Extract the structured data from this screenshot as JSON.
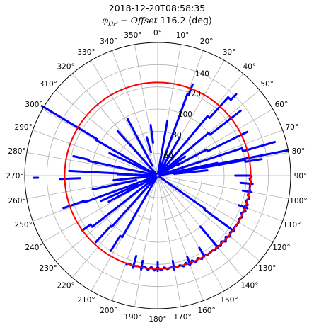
{
  "chart_data": {
    "type": "polar-line",
    "title": "2018-12-20T08:58:35",
    "subtitle_prefix": "φ",
    "subtitle_sub": "DP",
    "subtitle_rest": " − Offset",
    "subtitle_value": "116.2 (deg)",
    "theta_ticks": [
      "0°",
      "10°",
      "20°",
      "30°",
      "40°",
      "50°",
      "60°",
      "70°",
      "80°",
      "90°",
      "100°",
      "110°",
      "120°",
      "130°",
      "140°",
      "150°",
      "160°",
      "170°",
      "180°",
      "190°",
      "200°",
      "210°",
      "220°",
      "230°",
      "240°",
      "250°",
      "260°",
      "270°",
      "280°",
      "290°",
      "300°",
      "310°",
      "320°",
      "330°",
      "340°",
      "350°"
    ],
    "r_ticks": [
      "60",
      "80",
      "100",
      "120",
      "140"
    ],
    "r_tick_values": [
      60,
      80,
      100,
      120,
      140
    ],
    "rlim": [
      40,
      160
    ],
    "theta_zero": "north",
    "theta_direction": "clockwise",
    "grid": true,
    "reference_circle": {
      "r": 124,
      "color": "#ff0000"
    },
    "series_color": "#0000ff",
    "series": [
      {
        "segments": [
          [
            20,
            [
              42,
              118
            ]
          ],
          [
            21,
            [
              118,
              128
            ]
          ]
        ]
      },
      {
        "segments": [
          [
            40,
            [
              42,
              110
            ]
          ],
          [
            42,
            [
              110,
              135
            ]
          ],
          [
            44,
            [
              135,
              142
            ]
          ]
        ]
      },
      {
        "segments": [
          [
            50,
            [
              42,
              100
            ]
          ],
          [
            52,
            [
              100,
              135
            ]
          ]
        ]
      },
      {
        "segments": [
          [
            62,
            [
              60,
              90
            ]
          ],
          [
            64,
            [
              90,
              130
            ]
          ]
        ]
      },
      {
        "segments": [
          [
            72,
            [
              42,
              120
            ]
          ],
          [
            74,
            [
              120,
              150
            ]
          ]
        ]
      },
      {
        "segments": [
          [
            78,
            [
              42,
              95
            ]
          ],
          [
            79,
            [
              95,
              160
            ]
          ]
        ]
      },
      {
        "segments": [
          [
            80,
            [
              42,
              120
            ]
          ],
          [
            81,
            [
              120,
              135
            ]
          ]
        ]
      },
      {
        "segments": [
          [
            84,
            [
              55,
              85
            ]
          ]
        ]
      },
      {
        "segments": [
          [
            90,
            [
              110,
              124
            ]
          ]
        ]
      },
      {
        "segments": [
          [
            95,
            [
              115,
              126
            ]
          ]
        ]
      },
      {
        "segments": [
          [
            100,
            [
              118,
              126
            ]
          ]
        ]
      },
      {
        "segments": [
          [
            110,
            [
              118,
              126
            ]
          ]
        ]
      },
      {
        "segments": [
          [
            125,
            [
              42,
              92
            ]
          ],
          [
            126,
            [
              92,
              124
            ]
          ]
        ]
      },
      {
        "segments": [
          [
            140,
            [
              100,
              125
            ]
          ]
        ]
      },
      {
        "segments": [
          [
            150,
            [
              115,
              124
            ]
          ]
        ]
      },
      {
        "segments": [
          [
            160,
            [
              118,
              125
            ]
          ]
        ]
      },
      {
        "segments": [
          [
            170,
            [
              118,
              126
            ]
          ]
        ]
      },
      {
        "segments": [
          [
            180,
            [
              118,
              126
            ]
          ]
        ]
      },
      {
        "segments": [
          [
            190,
            [
              118,
              126
            ]
          ]
        ]
      },
      {
        "segments": [
          [
            195,
            [
              115,
              126
            ]
          ]
        ]
      },
      {
        "segments": [
          [
            210,
            [
              42,
              104
            ]
          ],
          [
            212,
            [
              104,
              120
            ]
          ]
        ]
      },
      {
        "segments": [
          [
            222,
            [
              42,
              102
            ]
          ],
          [
            223,
            [
              102,
              122
            ]
          ]
        ]
      },
      {
        "segments": [
          [
            232,
            [
              42,
              115
            ]
          ],
          [
            234,
            [
              115,
              124
            ]
          ]
        ]
      },
      {
        "segments": [
          [
            242,
            [
              42,
              90
            ]
          ]
        ]
      },
      {
        "segments": [
          [
            246,
            [
              60,
              96
            ]
          ]
        ]
      },
      {
        "segments": [
          [
            250,
            [
              42,
              110
            ]
          ],
          [
            251,
            [
              110,
              130
            ]
          ]
        ]
      },
      {
        "segments": [
          [
            258,
            [
              60,
              100
            ]
          ]
        ]
      },
      {
        "segments": [
          [
            264,
            [
              42,
              80
            ]
          ]
        ]
      },
      {
        "segments": [
          [
            268,
            [
              110,
              128
            ]
          ]
        ]
      },
      {
        "segments": [
          [
            269,
            [
              148,
              152
            ]
          ]
        ]
      },
      {
        "segments": [
          [
            272,
            [
              42,
              76
            ]
          ],
          [
            273,
            [
              76,
              120
            ]
          ]
        ]
      },
      {
        "segments": [
          [
            282,
            [
              42,
              104
            ]
          ],
          [
            283,
            [
              104,
              118
            ]
          ]
        ]
      },
      {
        "segments": [
          [
            295,
            [
              42,
              88
            ]
          ]
        ]
      },
      {
        "segments": [
          [
            300,
            [
              42,
              104
            ]
          ],
          [
            301,
            [
              104,
              162
            ]
          ]
        ]
      },
      {
        "segments": [
          [
            318,
            [
              42,
              94
            ]
          ]
        ]
      },
      {
        "segments": [
          [
            332,
            [
              50,
              98
            ]
          ]
        ]
      },
      {
        "segments": [
          [
            344,
            [
              62,
              76
            ]
          ]
        ]
      },
      {
        "segments": [
          [
            352,
            [
              70,
              86
            ]
          ]
        ]
      },
      {
        "segments": [
          [
            10,
            [
              42,
              90
            ]
          ]
        ]
      },
      {
        "segments": [
          [
            30,
            [
              42,
              80
            ]
          ]
        ]
      },
      {
        "segments": [
          [
            55,
            [
              42,
              70
            ]
          ]
        ]
      },
      {
        "segments": [
          [
            60,
            [
              48,
              62
            ]
          ]
        ]
      }
    ]
  }
}
